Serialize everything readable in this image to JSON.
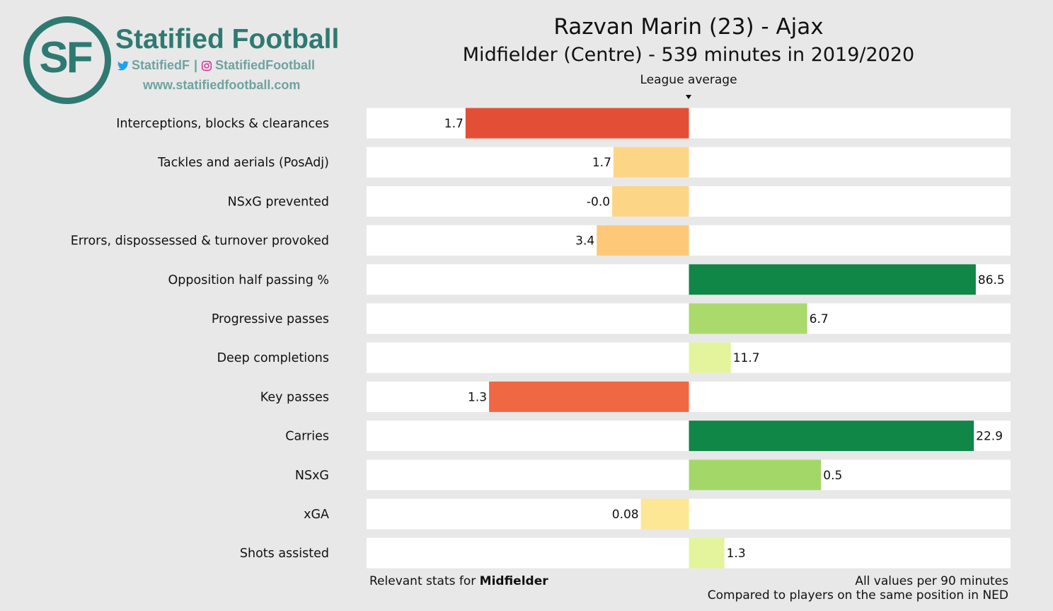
{
  "logo": {
    "initials": "SF",
    "brand": "Statified Football",
    "twitter": "StatifiedF",
    "separator": "|",
    "instagram": "StatifiedFootball",
    "url": "www.statifiedfootball.com",
    "brand_color": "#2e7a72"
  },
  "colors": {
    "background": "#e8e8e8",
    "track": "#ffffff"
  },
  "chart_data": {
    "type": "bar",
    "orientation": "horizontal-diverging",
    "title": "Razvan Marin (23) - Ajax",
    "subtitle": "Midfielder (Centre) - 539 minutes in 2019/2020",
    "center_label": "League average",
    "range": [
      -1,
      1
    ],
    "categories": [
      "Interceptions, blocks & clearances",
      "Tackles and aerials (PosAdj)",
      "NSxG prevented",
      "Errors, dispossessed & turnover provoked",
      "Opposition half passing %",
      "Progressive passes",
      "Deep completions",
      "Key passes",
      "Carries",
      "NSxG",
      "xGA",
      "Shots assisted"
    ],
    "relative_values": [
      -0.693,
      -0.234,
      -0.238,
      -0.286,
      0.89,
      0.367,
      0.13,
      -0.62,
      0.884,
      0.41,
      -0.149,
      0.11
    ],
    "labels": [
      "1.7",
      "1.7",
      "-0.0",
      "3.4",
      "86.5",
      "6.7",
      "11.7",
      "1.3",
      "22.9",
      "0.5",
      "0.08",
      "1.3"
    ],
    "colors": [
      "#e34f36",
      "#fdd587",
      "#fdd587",
      "#fdc979",
      "#108647",
      "#a9da6b",
      "#e3f49c",
      "#f06743",
      "#108647",
      "#a3d869",
      "#fde694",
      "#e3f49c"
    ],
    "footer_left_prefix": "Relevant stats for ",
    "footer_left_bold": "Midfielder",
    "footer_right_line1": "All values per 90 minutes",
    "footer_right_line2": "Compared to players on the same position in NED"
  }
}
